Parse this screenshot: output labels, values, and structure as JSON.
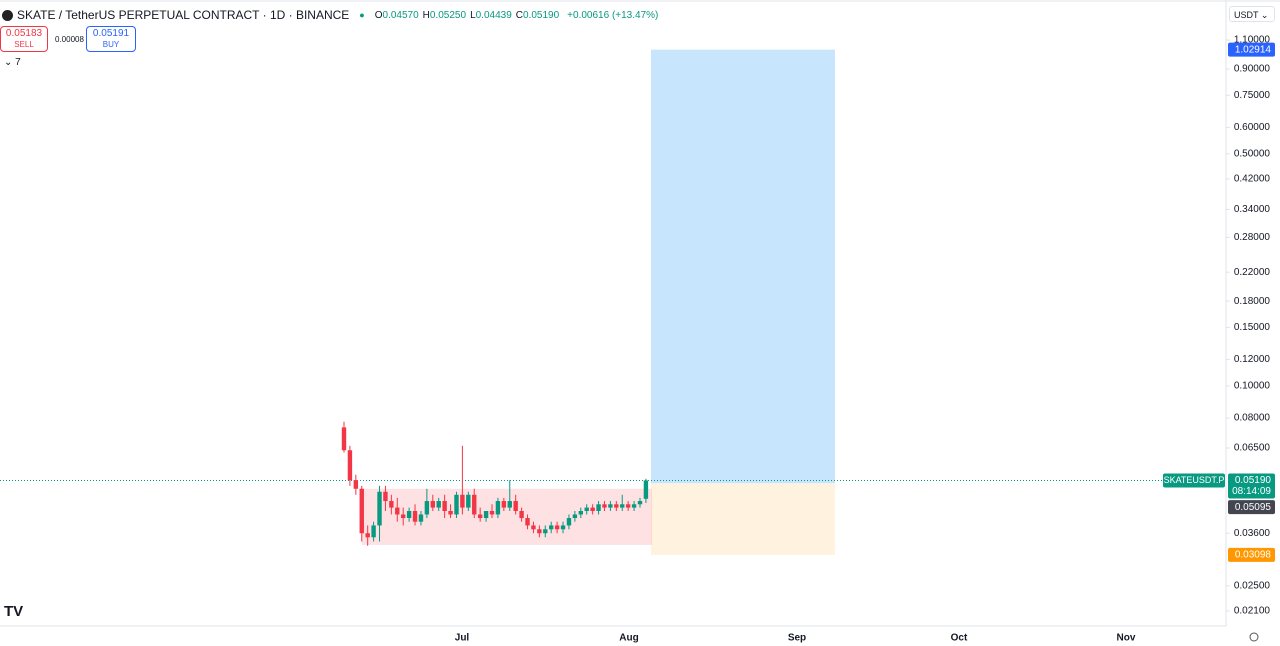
{
  "header": {
    "symbol": "SKATE / TetherUS PERPETUAL CONTRACT · 1D · BINANCE",
    "ohlc": [
      {
        "key": "O",
        "value": "0.04570"
      },
      {
        "key": "H",
        "value": "0.05250"
      },
      {
        "key": "L",
        "value": "0.04439"
      },
      {
        "key": "C",
        "value": "0.05190"
      }
    ],
    "change": "+0.00616 (+13.47%)",
    "sell": {
      "price": "0.05183",
      "label": "SELL"
    },
    "spread": "0.00008",
    "buy": {
      "price": "0.05191",
      "label": "BUY"
    },
    "indicators": "7",
    "currency": "USDT"
  },
  "chart_data": {
    "type": "candlestick",
    "log_scale": true,
    "open": [
      0.075,
      0.064,
      0.052,
      0.049,
      0.036,
      0.035,
      0.038,
      0.048,
      0.045,
      0.043,
      0.041,
      0.04,
      0.042,
      0.039,
      0.041,
      0.045,
      0.043,
      0.045,
      0.042,
      0.041,
      0.047,
      0.043,
      0.047,
      0.041,
      0.04,
      0.042,
      0.041,
      0.045,
      0.043,
      0.045,
      0.042,
      0.04,
      0.038,
      0.037,
      0.036,
      0.037,
      0.038,
      0.037,
      0.038,
      0.04,
      0.041,
      0.042,
      0.043,
      0.042,
      0.044,
      0.043,
      0.044,
      0.043,
      0.044,
      0.043,
      0.044,
      0.0457
    ],
    "high": [
      0.078,
      0.066,
      0.054,
      0.05,
      0.038,
      0.039,
      0.05,
      0.05,
      0.047,
      0.046,
      0.043,
      0.043,
      0.044,
      0.042,
      0.049,
      0.047,
      0.046,
      0.047,
      0.044,
      0.048,
      0.066,
      0.048,
      0.049,
      0.043,
      0.042,
      0.044,
      0.046,
      0.046,
      0.052,
      0.047,
      0.043,
      0.041,
      0.039,
      0.038,
      0.038,
      0.039,
      0.039,
      0.039,
      0.041,
      0.042,
      0.043,
      0.044,
      0.044,
      0.045,
      0.045,
      0.045,
      0.045,
      0.047,
      0.045,
      0.045,
      0.046,
      0.0525
    ],
    "low": [
      0.063,
      0.05,
      0.047,
      0.034,
      0.033,
      0.034,
      0.034,
      0.042,
      0.041,
      0.039,
      0.038,
      0.039,
      0.038,
      0.038,
      0.04,
      0.042,
      0.042,
      0.04,
      0.04,
      0.04,
      0.041,
      0.042,
      0.04,
      0.039,
      0.039,
      0.04,
      0.04,
      0.042,
      0.042,
      0.041,
      0.039,
      0.037,
      0.036,
      0.035,
      0.035,
      0.036,
      0.036,
      0.036,
      0.037,
      0.039,
      0.04,
      0.041,
      0.041,
      0.041,
      0.042,
      0.042,
      0.042,
      0.042,
      0.042,
      0.042,
      0.043,
      0.04439
    ],
    "close": [
      0.064,
      0.052,
      0.049,
      0.036,
      0.035,
      0.038,
      0.048,
      0.045,
      0.043,
      0.041,
      0.04,
      0.042,
      0.039,
      0.041,
      0.045,
      0.043,
      0.045,
      0.042,
      0.041,
      0.047,
      0.043,
      0.047,
      0.041,
      0.04,
      0.042,
      0.041,
      0.045,
      0.043,
      0.045,
      0.042,
      0.04,
      0.038,
      0.037,
      0.036,
      0.037,
      0.038,
      0.037,
      0.038,
      0.04,
      0.041,
      0.042,
      0.043,
      0.042,
      0.044,
      0.043,
      0.044,
      0.043,
      0.044,
      0.043,
      0.044,
      0.045,
      0.0519
    ],
    "up_color": "#089981",
    "down_color": "#f23645",
    "months": [
      "Jul",
      "Aug",
      "Sep",
      "Oct",
      "Nov"
    ],
    "ylim": [
      0.019,
      1.2
    ],
    "yticks": [
      {
        "value": 1.1,
        "label": "1.10000"
      },
      {
        "value": 0.9,
        "label": "0.90000"
      },
      {
        "value": 0.75,
        "label": "0.75000"
      },
      {
        "value": 0.6,
        "label": "0.60000"
      },
      {
        "value": 0.5,
        "label": "0.50000"
      },
      {
        "value": 0.42,
        "label": "0.42000"
      },
      {
        "value": 0.34,
        "label": "0.34000"
      },
      {
        "value": 0.28,
        "label": "0.28000"
      },
      {
        "value": 0.22,
        "label": "0.22000"
      },
      {
        "value": 0.18,
        "label": "0.18000"
      },
      {
        "value": 0.15,
        "label": "0.15000"
      },
      {
        "value": 0.12,
        "label": "0.12000"
      },
      {
        "value": 0.1,
        "label": "0.10000"
      },
      {
        "value": 0.08,
        "label": "0.08000"
      },
      {
        "value": 0.065,
        "label": "0.06500"
      },
      {
        "value": 0.036,
        "label": "0.03600"
      },
      {
        "value": 0.025,
        "label": "0.02500"
      },
      {
        "value": 0.021,
        "label": "0.02100"
      }
    ],
    "zone": {
      "high": 0.049,
      "low": 0.0332
    },
    "position": {
      "target": {
        "value": 1.02914,
        "label": "1.02914"
      },
      "entry": {
        "value": 0.05095,
        "label": "0.05095"
      },
      "stop": {
        "value": 0.03098,
        "label": "0.03098"
      }
    },
    "last_price": {
      "symbol": "SKATEUSDT.P",
      "value": 0.0519,
      "label": "0.05190",
      "countdown": "08:14:09"
    }
  }
}
